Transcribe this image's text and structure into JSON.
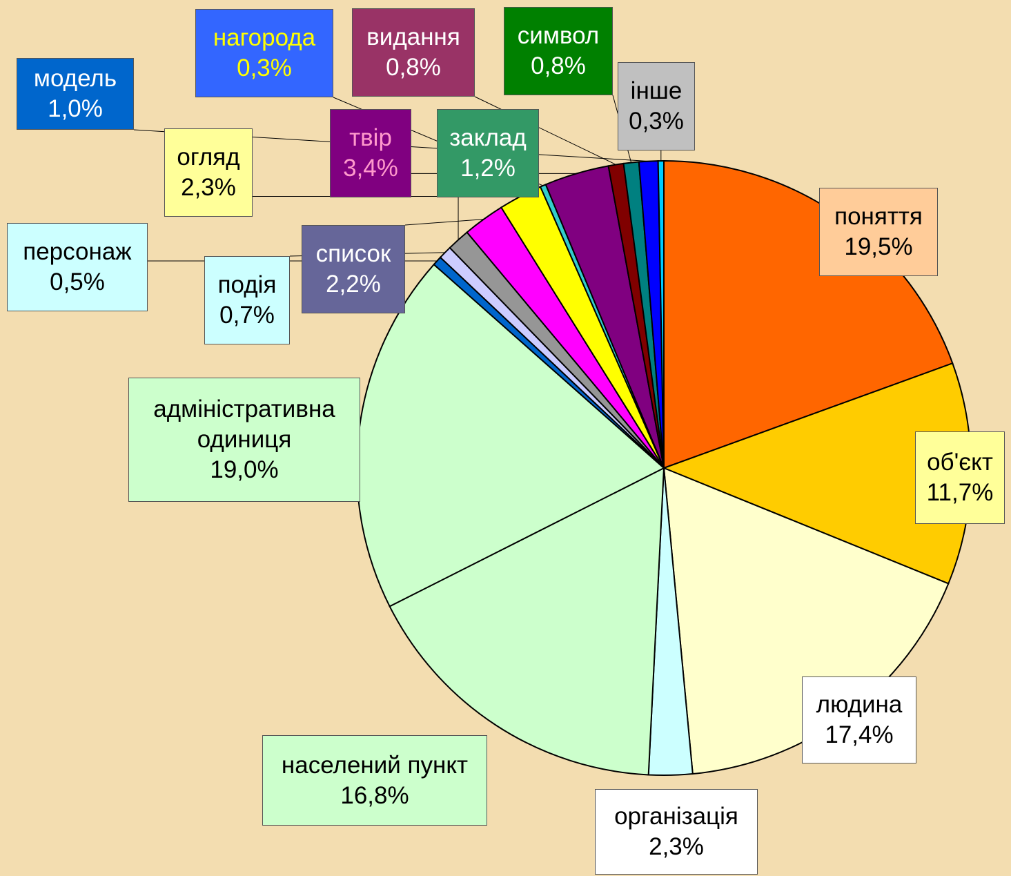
{
  "chart_data": {
    "type": "pie",
    "categories": [
      "поняття",
      "об'єкт",
      "людина",
      "організація",
      "населений пункт",
      "адміністративна одиниця",
      "персонаж",
      "подія",
      "заклад",
      "список",
      "огляд",
      "нагорода",
      "твір",
      "видання",
      "символ",
      "модель",
      "інше"
    ],
    "values": [
      19.5,
      11.7,
      17.4,
      2.3,
      16.8,
      19.0,
      0.5,
      0.7,
      1.2,
      2.2,
      2.3,
      0.3,
      3.4,
      0.8,
      0.8,
      1.0,
      0.3
    ],
    "value_labels": [
      "19,5%",
      "11,7%",
      "17,4%",
      "2,3%",
      "16,8%",
      "19,0%",
      "0,5%",
      "0,7%",
      "1,2%",
      "2,2%",
      "2,3%",
      "0,3%",
      "3,4%",
      "0,8%",
      "0,8%",
      "1,0%",
      "0,3%"
    ],
    "colors": [
      "#FF6600",
      "#FFCC00",
      "#FFFFCC",
      "#CCFFFF",
      "#CCFFCC",
      "#CCFFCC",
      "#0066CC",
      "#CCCCFF",
      "#969696",
      "#FF00FF",
      "#FFFF00",
      "#33CCCC",
      "#800080",
      "#800000",
      "#008080",
      "#0000FF",
      "#00CCFF"
    ],
    "label_colors": [
      "#FFCC99",
      "#FFFF99",
      "#FFFFFF",
      "#FFFFFF",
      "#CCFFCC",
      "#CCFFCC",
      "#CCFFFF",
      "#CCFFFF",
      "#339966",
      "#666699",
      "#FFFF99",
      "#3366FF",
      "#800080",
      "#993366",
      "#008000",
      "#0066CC",
      "#C0C0C0"
    ],
    "label_text_colors": [
      "#000000",
      "#000000",
      "#000000",
      "#000000",
      "#000000",
      "#000000",
      "#000000",
      "#000000",
      "#FFFFFF",
      "#FFFFFF",
      "#000000",
      "#FFFF00",
      "#FF99CC",
      "#FFFFFF",
      "#FFFFFF",
      "#FFFFFF",
      "#000000"
    ]
  }
}
